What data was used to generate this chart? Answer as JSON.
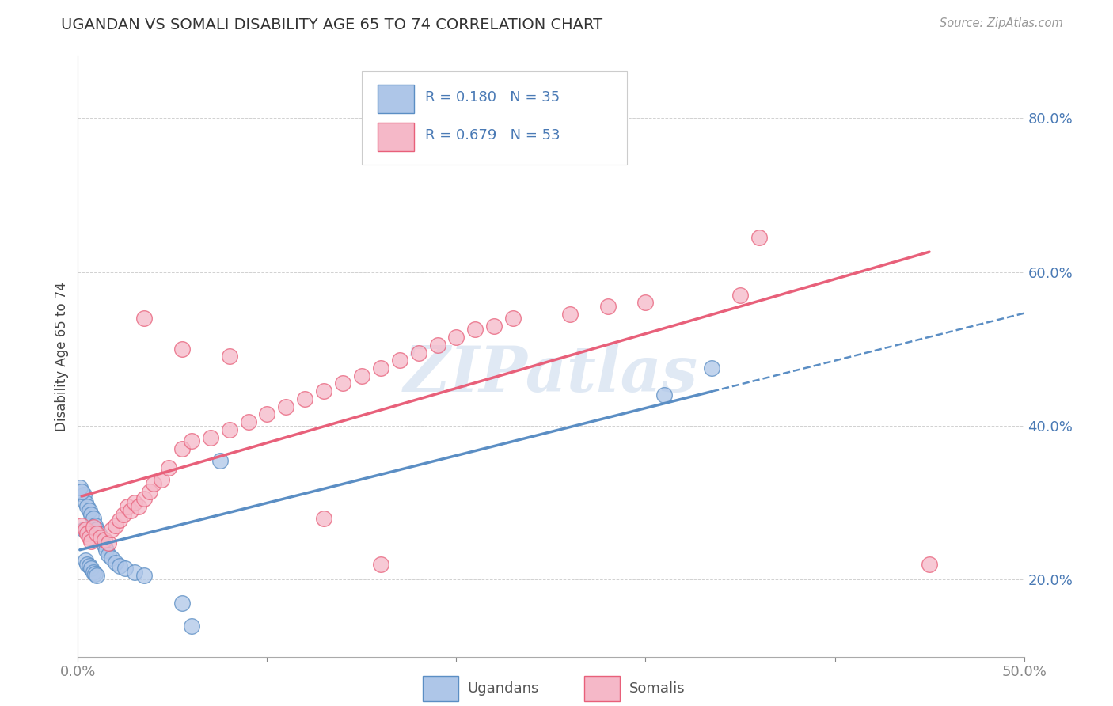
{
  "title": "UGANDAN VS SOMALI DISABILITY AGE 65 TO 74 CORRELATION CHART",
  "source_text": "Source: ZipAtlas.com",
  "ylabel": "Disability Age 65 to 74",
  "xlim": [
    0.0,
    0.5
  ],
  "ylim": [
    0.1,
    0.88
  ],
  "ugandan_color": "#aec6e8",
  "somali_color": "#f5b8c8",
  "ugandan_line_color": "#5b8ec4",
  "somali_line_color": "#e8607a",
  "legend_R1": "R = 0.180",
  "legend_N1": "N = 35",
  "legend_R2": "R = 0.679",
  "legend_N2": "N = 53",
  "watermark": "ZIPatlas",
  "ugandan_x": [
    0.003,
    0.004,
    0.005,
    0.006,
    0.007,
    0.008,
    0.009,
    0.01,
    0.011,
    0.012,
    0.013,
    0.014,
    0.015,
    0.016,
    0.018,
    0.02,
    0.022,
    0.025,
    0.03,
    0.035,
    0.001,
    0.002,
    0.003,
    0.004,
    0.005,
    0.006,
    0.007,
    0.008,
    0.009,
    0.01,
    0.055,
    0.06,
    0.075,
    0.31,
    0.335
  ],
  "ugandan_y": [
    0.31,
    0.3,
    0.295,
    0.29,
    0.285,
    0.28,
    0.27,
    0.265,
    0.26,
    0.255,
    0.25,
    0.245,
    0.238,
    0.232,
    0.228,
    0.222,
    0.218,
    0.215,
    0.21,
    0.205,
    0.32,
    0.315,
    0.265,
    0.225,
    0.22,
    0.218,
    0.215,
    0.21,
    0.208,
    0.205,
    0.17,
    0.14,
    0.355,
    0.44,
    0.475
  ],
  "somali_x": [
    0.002,
    0.004,
    0.005,
    0.006,
    0.007,
    0.008,
    0.01,
    0.012,
    0.014,
    0.016,
    0.018,
    0.02,
    0.022,
    0.024,
    0.026,
    0.028,
    0.03,
    0.032,
    0.035,
    0.038,
    0.04,
    0.044,
    0.048,
    0.055,
    0.06,
    0.07,
    0.08,
    0.09,
    0.1,
    0.11,
    0.12,
    0.13,
    0.14,
    0.15,
    0.16,
    0.17,
    0.18,
    0.19,
    0.2,
    0.21,
    0.22,
    0.23,
    0.26,
    0.28,
    0.3,
    0.035,
    0.055,
    0.08,
    0.13,
    0.16,
    0.35,
    0.45,
    0.36
  ],
  "somali_y": [
    0.27,
    0.265,
    0.26,
    0.255,
    0.25,
    0.268,
    0.26,
    0.255,
    0.252,
    0.248,
    0.265,
    0.27,
    0.278,
    0.285,
    0.295,
    0.29,
    0.3,
    0.295,
    0.305,
    0.315,
    0.325,
    0.33,
    0.345,
    0.37,
    0.38,
    0.385,
    0.395,
    0.405,
    0.415,
    0.425,
    0.435,
    0.445,
    0.455,
    0.465,
    0.475,
    0.485,
    0.495,
    0.505,
    0.515,
    0.525,
    0.53,
    0.54,
    0.545,
    0.555,
    0.56,
    0.54,
    0.5,
    0.49,
    0.28,
    0.22,
    0.57,
    0.22,
    0.645
  ]
}
